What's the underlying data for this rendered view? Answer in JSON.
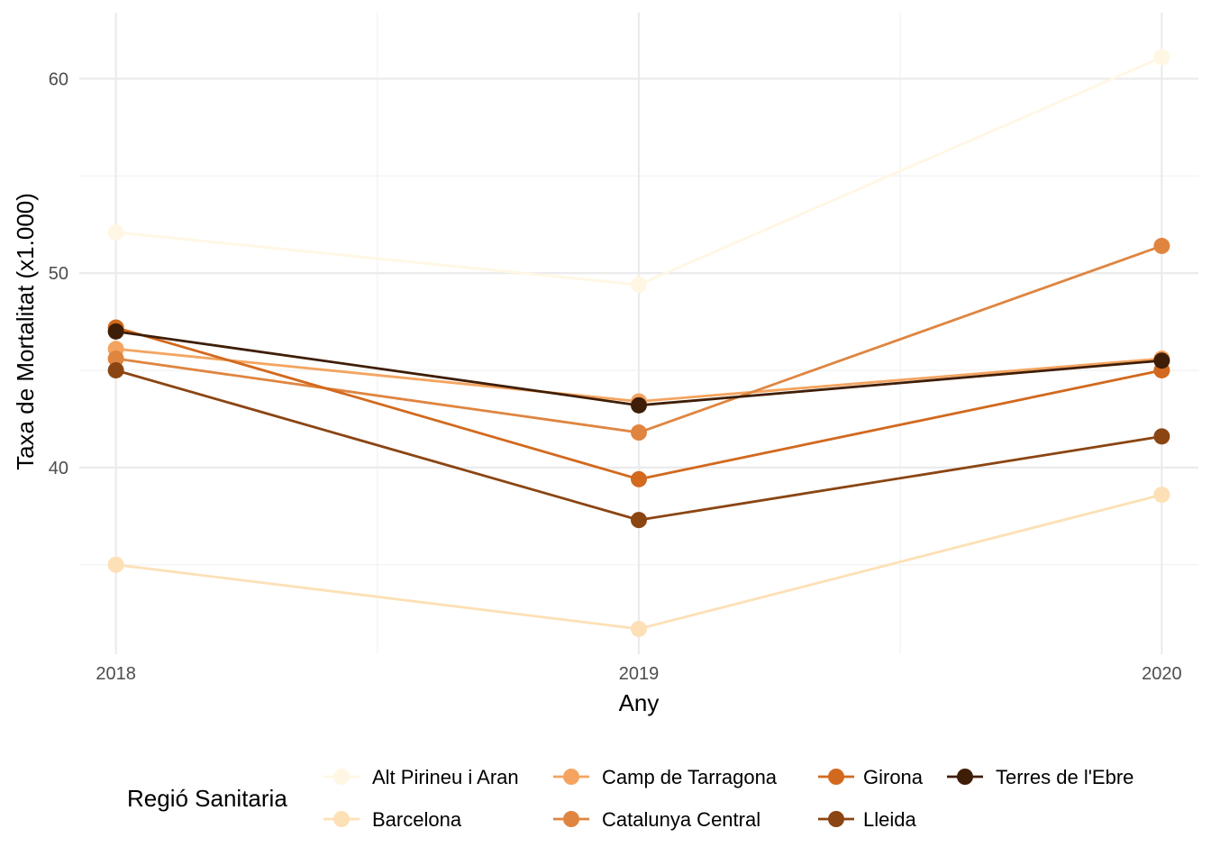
{
  "chart_data": {
    "type": "line",
    "title": "",
    "xlabel": "Any",
    "ylabel": "Taxa de Mortalitat (x1.000)",
    "x": [
      2018,
      2019,
      2020
    ],
    "x_tick_labels": [
      "2018",
      "2019",
      "2020"
    ],
    "xlim": [
      2017.93,
      2020.07
    ],
    "y_ticks": [
      40,
      50,
      60
    ],
    "y_tick_labels": [
      "40",
      "50",
      "60"
    ],
    "y_minor_ticks": [
      35,
      45,
      55
    ],
    "x_minor_ticks": [
      2018.5,
      2019.5
    ],
    "ylim": [
      30.4,
      63.4
    ],
    "grid": true,
    "legend_title": "Regió Sanitaria",
    "legend_position": "bottom",
    "series": [
      {
        "name": "Alt Pirineu i Aran",
        "color": "#fff7e3",
        "values": [
          52.1,
          49.4,
          61.1
        ]
      },
      {
        "name": "Barcelona",
        "color": "#fde0b6",
        "values": [
          35.0,
          31.7,
          38.6
        ]
      },
      {
        "name": "Camp de Tarragona",
        "color": "#f4a460",
        "values": [
          46.1,
          43.4,
          45.6
        ]
      },
      {
        "name": "Catalunya Central",
        "color": "#df8540",
        "values": [
          45.6,
          41.8,
          51.4
        ]
      },
      {
        "name": "Girona",
        "color": "#d2691e",
        "values": [
          47.2,
          39.4,
          45.0
        ]
      },
      {
        "name": "Lleida",
        "color": "#8b4513",
        "values": [
          45.0,
          37.3,
          41.6
        ]
      },
      {
        "name": "Terres de l'Ebre",
        "color": "#3f1e07",
        "values": [
          47.0,
          43.2,
          45.5
        ]
      }
    ]
  }
}
